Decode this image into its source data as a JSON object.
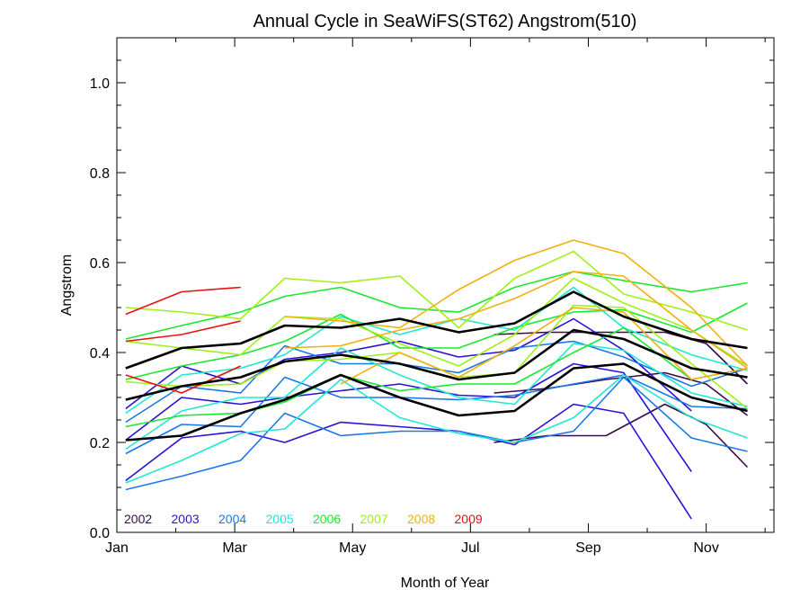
{
  "chart_data": {
    "type": "line",
    "title": "Annual Cycle in SeaWiFS(ST62) Angstrom(510)",
    "xlabel": "Month of Year",
    "ylabel": "Angstrom",
    "xlim": [
      1,
      12.15
    ],
    "ylim": [
      0.0,
      1.1
    ],
    "x_ticks": [
      {
        "value": 1,
        "label": "Jan"
      },
      {
        "value": 3,
        "label": "Mar"
      },
      {
        "value": 5,
        "label": "May"
      },
      {
        "value": 7,
        "label": "Jul"
      },
      {
        "value": 9,
        "label": "Sep"
      },
      {
        "value": 11,
        "label": "Nov"
      }
    ],
    "y_ticks": [
      {
        "value": 0.0,
        "label": "0.0"
      },
      {
        "value": 0.2,
        "label": "0.2"
      },
      {
        "value": 0.4,
        "label": "0.4"
      },
      {
        "value": 0.6,
        "label": "0.6"
      },
      {
        "value": 0.8,
        "label": "0.8"
      },
      {
        "value": 1.0,
        "label": "1.0"
      }
    ],
    "legend_position": "bottom-left",
    "legend": [
      {
        "label": "2002",
        "color": "#3a0a4a"
      },
      {
        "label": "2003",
        "color": "#2a10d8"
      },
      {
        "label": "2004",
        "color": "#1a78e8"
      },
      {
        "label": "2005",
        "color": "#20e8d0"
      },
      {
        "label": "2006",
        "color": "#18e830"
      },
      {
        "label": "2007",
        "color": "#a0f018"
      },
      {
        "label": "2008",
        "color": "#f0b010"
      },
      {
        "label": "2009",
        "color": "#e81010"
      }
    ],
    "series": [
      {
        "color": "#3a0a4a",
        "points": [
          [
            7.4,
            0.2
          ],
          [
            8.3,
            0.215
          ],
          [
            9.3,
            0.215
          ],
          [
            10.3,
            0.285
          ],
          [
            11.0,
            0.24
          ],
          [
            11.7,
            0.145
          ]
        ]
      },
      {
        "color": "#3a0a4a",
        "points": [
          [
            7.4,
            0.31
          ],
          [
            8.3,
            0.32
          ],
          [
            9.3,
            0.34
          ],
          [
            10.3,
            0.355
          ],
          [
            11.0,
            0.33
          ],
          [
            11.7,
            0.26
          ]
        ]
      },
      {
        "color": "#3a0a4a",
        "points": [
          [
            7.4,
            0.44
          ],
          [
            8.3,
            0.445
          ],
          [
            9.3,
            0.445
          ],
          [
            10.3,
            0.445
          ],
          [
            11.0,
            0.42
          ],
          [
            11.7,
            0.33
          ]
        ]
      },
      {
        "color": "#2a10d8",
        "points": [
          [
            1.15,
            0.115
          ],
          [
            2.1,
            0.21
          ],
          [
            3.1,
            0.225
          ],
          [
            3.85,
            0.2
          ],
          [
            4.8,
            0.245
          ],
          [
            5.8,
            0.235
          ],
          [
            6.8,
            0.225
          ],
          [
            7.75,
            0.195
          ],
          [
            8.75,
            0.285
          ],
          [
            9.6,
            0.265
          ],
          [
            10.75,
            0.03
          ]
        ]
      },
      {
        "color": "#2a10d8",
        "points": [
          [
            1.15,
            0.205
          ],
          [
            2.1,
            0.3
          ],
          [
            3.1,
            0.285
          ],
          [
            3.85,
            0.3
          ],
          [
            4.8,
            0.315
          ],
          [
            5.8,
            0.33
          ],
          [
            6.8,
            0.305
          ],
          [
            7.75,
            0.3
          ],
          [
            8.75,
            0.375
          ],
          [
            9.6,
            0.355
          ],
          [
            10.75,
            0.135
          ]
        ]
      },
      {
        "color": "#2a10d8",
        "points": [
          [
            1.15,
            0.275
          ],
          [
            2.1,
            0.37
          ],
          [
            3.1,
            0.33
          ],
          [
            3.85,
            0.385
          ],
          [
            4.8,
            0.4
          ],
          [
            5.8,
            0.425
          ],
          [
            6.8,
            0.39
          ],
          [
            7.75,
            0.405
          ],
          [
            8.75,
            0.475
          ],
          [
            9.6,
            0.405
          ],
          [
            10.75,
            0.27
          ]
        ]
      },
      {
        "color": "#1a78e8",
        "points": [
          [
            1.15,
            0.095
          ],
          [
            2.1,
            0.125
          ],
          [
            3.1,
            0.16
          ],
          [
            3.85,
            0.265
          ],
          [
            4.8,
            0.215
          ],
          [
            5.8,
            0.225
          ],
          [
            6.8,
            0.225
          ],
          [
            7.75,
            0.2
          ],
          [
            8.75,
            0.225
          ],
          [
            9.6,
            0.345
          ],
          [
            10.75,
            0.21
          ],
          [
            11.7,
            0.18
          ]
        ]
      },
      {
        "color": "#1a78e8",
        "points": [
          [
            1.15,
            0.175
          ],
          [
            2.1,
            0.24
          ],
          [
            3.1,
            0.235
          ],
          [
            3.85,
            0.345
          ],
          [
            4.8,
            0.3
          ],
          [
            5.8,
            0.3
          ],
          [
            6.8,
            0.295
          ],
          [
            7.75,
            0.305
          ],
          [
            8.75,
            0.33
          ],
          [
            9.6,
            0.35
          ],
          [
            10.75,
            0.28
          ],
          [
            11.7,
            0.275
          ]
        ]
      },
      {
        "color": "#1a78e8",
        "points": [
          [
            1.15,
            0.245
          ],
          [
            2.1,
            0.325
          ],
          [
            3.1,
            0.31
          ],
          [
            3.85,
            0.415
          ],
          [
            4.8,
            0.375
          ],
          [
            5.8,
            0.375
          ],
          [
            6.8,
            0.355
          ],
          [
            7.75,
            0.41
          ],
          [
            8.75,
            0.425
          ],
          [
            9.6,
            0.39
          ],
          [
            10.75,
            0.325
          ],
          [
            11.7,
            0.365
          ]
        ]
      },
      {
        "color": "#20e8d0",
        "points": [
          [
            1.15,
            0.11
          ],
          [
            2.1,
            0.16
          ],
          [
            3.1,
            0.22
          ],
          [
            3.85,
            0.23
          ],
          [
            4.8,
            0.34
          ],
          [
            5.8,
            0.255
          ],
          [
            6.8,
            0.22
          ],
          [
            7.75,
            0.2
          ],
          [
            8.75,
            0.255
          ],
          [
            9.6,
            0.35
          ],
          [
            10.75,
            0.255
          ],
          [
            11.7,
            0.21
          ]
        ]
      },
      {
        "color": "#20e8d0",
        "points": [
          [
            1.15,
            0.185
          ],
          [
            2.1,
            0.27
          ],
          [
            3.1,
            0.3
          ],
          [
            3.85,
            0.3
          ],
          [
            4.8,
            0.41
          ],
          [
            5.8,
            0.35
          ],
          [
            6.8,
            0.3
          ],
          [
            7.75,
            0.285
          ],
          [
            8.75,
            0.42
          ],
          [
            9.6,
            0.405
          ],
          [
            10.75,
            0.31
          ],
          [
            11.7,
            0.28
          ]
        ]
      },
      {
        "color": "#20e8d0",
        "points": [
          [
            1.15,
            0.265
          ],
          [
            2.1,
            0.35
          ],
          [
            3.1,
            0.365
          ],
          [
            3.85,
            0.395
          ],
          [
            4.8,
            0.48
          ],
          [
            5.8,
            0.44
          ],
          [
            6.8,
            0.475
          ],
          [
            7.75,
            0.45
          ],
          [
            8.75,
            0.545
          ],
          [
            9.6,
            0.455
          ],
          [
            10.75,
            0.395
          ],
          [
            11.7,
            0.36
          ]
        ]
      },
      {
        "color": "#18e830",
        "points": [
          [
            1.15,
            0.235
          ],
          [
            2.1,
            0.26
          ],
          [
            3.1,
            0.265
          ],
          [
            3.85,
            0.29
          ],
          [
            4.8,
            0.35
          ],
          [
            5.8,
            0.315
          ],
          [
            6.8,
            0.33
          ],
          [
            7.75,
            0.33
          ],
          [
            8.75,
            0.4
          ],
          [
            9.6,
            0.455
          ],
          [
            10.75,
            0.34
          ],
          [
            11.7,
            0.365
          ]
        ]
      },
      {
        "color": "#18e830",
        "points": [
          [
            1.15,
            0.34
          ],
          [
            2.1,
            0.37
          ],
          [
            3.1,
            0.395
          ],
          [
            3.85,
            0.425
          ],
          [
            4.8,
            0.485
          ],
          [
            5.8,
            0.41
          ],
          [
            6.8,
            0.41
          ],
          [
            7.75,
            0.455
          ],
          [
            8.75,
            0.49
          ],
          [
            9.6,
            0.495
          ],
          [
            10.75,
            0.445
          ],
          [
            11.7,
            0.51
          ]
        ]
      },
      {
        "color": "#18e830",
        "points": [
          [
            1.15,
            0.43
          ],
          [
            2.1,
            0.46
          ],
          [
            3.1,
            0.49
          ],
          [
            3.85,
            0.525
          ],
          [
            4.8,
            0.545
          ],
          [
            5.8,
            0.5
          ],
          [
            6.8,
            0.49
          ],
          [
            7.75,
            0.545
          ],
          [
            8.75,
            0.58
          ],
          [
            9.6,
            0.56
          ],
          [
            10.75,
            0.535
          ],
          [
            11.7,
            0.555
          ]
        ]
      },
      {
        "color": "#a0f018",
        "points": [
          [
            1.15,
            0.335
          ],
          [
            2.1,
            0.325
          ],
          [
            3.1,
            0.33
          ],
          [
            3.85,
            0.38
          ],
          [
            4.8,
            0.385
          ],
          [
            5.8,
            0.4
          ],
          [
            6.8,
            0.345
          ],
          [
            7.75,
            0.355
          ],
          [
            8.75,
            0.505
          ],
          [
            9.6,
            0.5
          ],
          [
            10.75,
            0.375
          ],
          [
            11.7,
            0.275
          ]
        ]
      },
      {
        "color": "#a0f018",
        "points": [
          [
            1.15,
            0.425
          ],
          [
            2.1,
            0.41
          ],
          [
            3.1,
            0.395
          ],
          [
            3.85,
            0.48
          ],
          [
            4.8,
            0.475
          ],
          [
            5.8,
            0.42
          ],
          [
            6.8,
            0.37
          ],
          [
            7.75,
            0.44
          ],
          [
            8.75,
            0.565
          ],
          [
            9.6,
            0.51
          ],
          [
            10.75,
            0.45
          ],
          [
            11.7,
            0.37
          ]
        ]
      },
      {
        "color": "#a0f018",
        "points": [
          [
            1.15,
            0.5
          ],
          [
            2.1,
            0.49
          ],
          [
            3.1,
            0.475
          ],
          [
            3.85,
            0.565
          ],
          [
            4.8,
            0.555
          ],
          [
            5.8,
            0.57
          ],
          [
            6.8,
            0.455
          ],
          [
            7.75,
            0.565
          ],
          [
            8.75,
            0.625
          ],
          [
            9.6,
            0.53
          ],
          [
            10.75,
            0.49
          ],
          [
            11.7,
            0.45
          ]
        ]
      },
      {
        "color": "#f0b010",
        "points": [
          [
            4.8,
            0.33
          ],
          [
            5.8,
            0.4
          ],
          [
            6.8,
            0.345
          ],
          [
            7.75,
            0.415
          ],
          [
            8.75,
            0.5
          ],
          [
            9.6,
            0.49
          ],
          [
            10.75,
            0.34
          ],
          [
            11.7,
            0.365
          ]
        ]
      },
      {
        "color": "#f0b010",
        "points": [
          [
            3.85,
            0.41
          ],
          [
            4.8,
            0.415
          ],
          [
            5.8,
            0.45
          ],
          [
            6.8,
            0.475
          ],
          [
            7.75,
            0.52
          ],
          [
            8.75,
            0.58
          ],
          [
            9.6,
            0.57
          ],
          [
            10.75,
            0.45
          ],
          [
            11.7,
            0.365
          ]
        ]
      },
      {
        "color": "#f0b010",
        "points": [
          [
            3.85,
            0.48
          ],
          [
            4.8,
            0.47
          ],
          [
            5.8,
            0.455
          ],
          [
            6.8,
            0.54
          ],
          [
            7.75,
            0.605
          ],
          [
            8.75,
            0.65
          ],
          [
            9.6,
            0.62
          ],
          [
            10.75,
            0.5
          ],
          [
            11.7,
            0.37
          ]
        ]
      },
      {
        "color": "#e81010",
        "points": [
          [
            1.15,
            0.35
          ],
          [
            2.1,
            0.31
          ],
          [
            3.1,
            0.37
          ]
        ]
      },
      {
        "color": "#e81010",
        "points": [
          [
            1.15,
            0.425
          ],
          [
            2.1,
            0.44
          ],
          [
            3.1,
            0.47
          ]
        ]
      },
      {
        "color": "#e81010",
        "points": [
          [
            1.15,
            0.485
          ],
          [
            2.1,
            0.535
          ],
          [
            3.1,
            0.545
          ]
        ]
      },
      {
        "color": "#000000",
        "width": 2.6,
        "points": [
          [
            1.15,
            0.205
          ],
          [
            2.1,
            0.215
          ],
          [
            3.1,
            0.265
          ],
          [
            3.85,
            0.295
          ],
          [
            4.8,
            0.35
          ],
          [
            5.8,
            0.3
          ],
          [
            6.8,
            0.26
          ],
          [
            7.75,
            0.27
          ],
          [
            8.75,
            0.365
          ],
          [
            9.6,
            0.375
          ],
          [
            10.75,
            0.3
          ],
          [
            11.7,
            0.27
          ]
        ]
      },
      {
        "color": "#000000",
        "width": 2.6,
        "points": [
          [
            1.15,
            0.295
          ],
          [
            2.1,
            0.325
          ],
          [
            3.1,
            0.345
          ],
          [
            3.85,
            0.38
          ],
          [
            4.8,
            0.395
          ],
          [
            5.8,
            0.375
          ],
          [
            6.8,
            0.34
          ],
          [
            7.75,
            0.355
          ],
          [
            8.75,
            0.45
          ],
          [
            9.6,
            0.43
          ],
          [
            10.75,
            0.365
          ],
          [
            11.7,
            0.345
          ]
        ]
      },
      {
        "color": "#000000",
        "width": 2.6,
        "points": [
          [
            1.15,
            0.365
          ],
          [
            2.1,
            0.41
          ],
          [
            3.1,
            0.42
          ],
          [
            3.85,
            0.46
          ],
          [
            4.8,
            0.455
          ],
          [
            5.8,
            0.475
          ],
          [
            6.8,
            0.445
          ],
          [
            7.75,
            0.465
          ],
          [
            8.75,
            0.535
          ],
          [
            9.6,
            0.48
          ],
          [
            10.75,
            0.43
          ],
          [
            11.7,
            0.41
          ]
        ]
      }
    ]
  }
}
